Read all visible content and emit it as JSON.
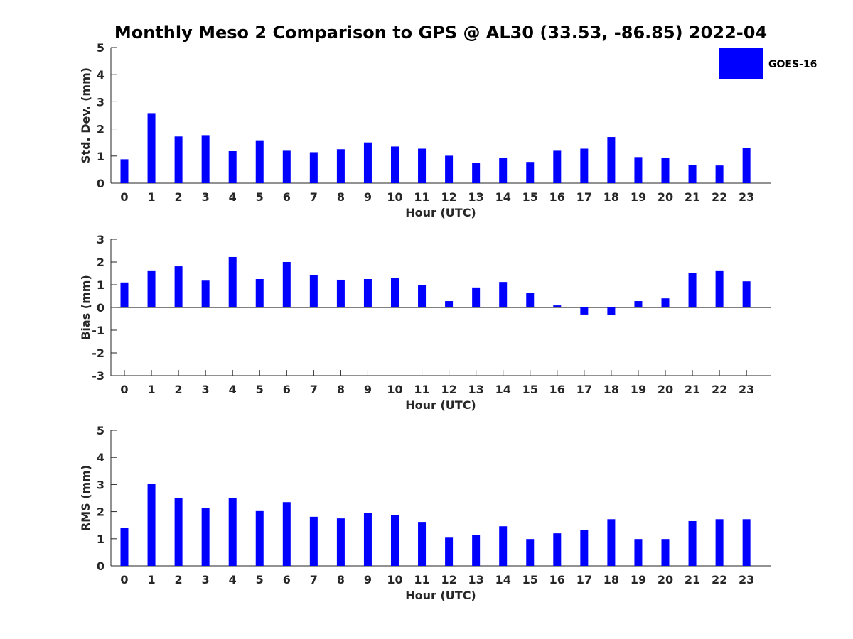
{
  "title": "Monthly Meso 2 Comparison to GPS @ AL30 (33.53, -86.85) 2022-04",
  "legend": {
    "label": "GOES-16",
    "color": "#0000ff",
    "placement": "top-right"
  },
  "chart_data": [
    {
      "type": "bar",
      "name": "stddev",
      "xlabel": "Hour (UTC)",
      "ylabel": "Std. Dev. (mm)",
      "ylim": [
        0,
        5
      ],
      "yticks": [
        0,
        1,
        2,
        3,
        4,
        5
      ],
      "categories": [
        "0",
        "1",
        "2",
        "3",
        "4",
        "5",
        "6",
        "7",
        "8",
        "9",
        "10",
        "11",
        "12",
        "13",
        "14",
        "15",
        "16",
        "17",
        "18",
        "19",
        "20",
        "21",
        "22",
        "23"
      ],
      "series": [
        {
          "name": "GOES-16",
          "values": [
            0.88,
            2.58,
            1.72,
            1.77,
            1.2,
            1.58,
            1.22,
            1.14,
            1.25,
            1.5,
            1.35,
            1.27,
            1.01,
            0.75,
            0.94,
            0.78,
            1.22,
            1.27,
            1.7,
            0.96,
            0.94,
            0.66,
            0.65,
            1.3
          ]
        }
      ],
      "grid": false
    },
    {
      "type": "bar",
      "name": "bias",
      "xlabel": "Hour (UTC)",
      "ylabel": "Bias (mm)",
      "ylim": [
        -3,
        3
      ],
      "yticks": [
        -3,
        -2,
        -1,
        0,
        1,
        2,
        3
      ],
      "categories": [
        "0",
        "1",
        "2",
        "3",
        "4",
        "5",
        "6",
        "7",
        "8",
        "9",
        "10",
        "11",
        "12",
        "13",
        "14",
        "15",
        "16",
        "17",
        "18",
        "19",
        "20",
        "21",
        "22",
        "23"
      ],
      "series": [
        {
          "name": "GOES-16",
          "values": [
            1.1,
            1.63,
            1.81,
            1.18,
            2.22,
            1.25,
            2.0,
            1.41,
            1.22,
            1.25,
            1.31,
            1.0,
            0.28,
            0.88,
            1.12,
            0.65,
            0.09,
            -0.31,
            -0.34,
            0.28,
            0.4,
            1.53,
            1.63,
            1.15
          ]
        }
      ],
      "grid": false
    },
    {
      "type": "bar",
      "name": "rms",
      "xlabel": "Hour (UTC)",
      "ylabel": "RMS (mm)",
      "ylim": [
        0,
        5
      ],
      "yticks": [
        0,
        1,
        2,
        3,
        4,
        5
      ],
      "categories": [
        "0",
        "1",
        "2",
        "3",
        "4",
        "5",
        "6",
        "7",
        "8",
        "9",
        "10",
        "11",
        "12",
        "13",
        "14",
        "15",
        "16",
        "17",
        "18",
        "19",
        "20",
        "21",
        "22",
        "23"
      ],
      "series": [
        {
          "name": "GOES-16",
          "values": [
            1.39,
            3.03,
            2.5,
            2.12,
            2.5,
            2.02,
            2.35,
            1.81,
            1.75,
            1.96,
            1.88,
            1.62,
            1.04,
            1.15,
            1.46,
            0.99,
            1.2,
            1.31,
            1.72,
            0.99,
            0.99,
            1.65,
            1.72,
            1.72
          ]
        }
      ],
      "grid": false
    }
  ]
}
